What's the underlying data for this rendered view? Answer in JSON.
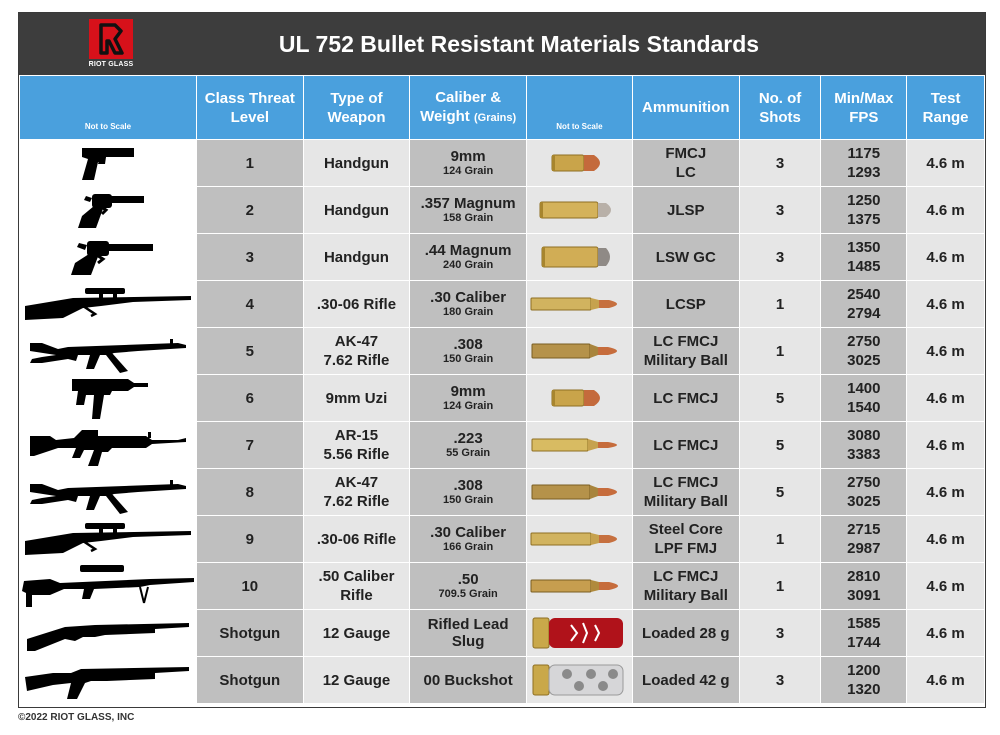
{
  "header": {
    "logo_text": "RIOT GLASS",
    "title": "UL 752 Bullet Resistant Materials Standards"
  },
  "columns": {
    "not_to_scale_1": "Not to Scale",
    "level": "Class Threat Level",
    "weapon": "Type of Weapon",
    "caliber_main": "Caliber &",
    "caliber_sub_a": "Weight",
    "caliber_sub_b": "(Grains)",
    "not_to_scale_2": "Not to Scale",
    "ammo": "Ammunition",
    "shots": "No. of Shots",
    "fps": "Min/Max FPS",
    "range": "Test Range"
  },
  "rows": [
    {
      "level": "1",
      "weapon": "Handgun",
      "caliber": "9mm",
      "grain": "124 Grain",
      "ammo": "FMCJ\nLC",
      "shots": "3",
      "fps_min": "1175",
      "fps_max": "1293",
      "range": "4.6 m",
      "gun_icon": "pistol-icon",
      "bullet_icon": "bullet-9mm-icon"
    },
    {
      "level": "2",
      "weapon": "Handgun",
      "caliber": ".357 Magnum",
      "grain": "158 Grain",
      "ammo": "JLSP",
      "shots": "3",
      "fps_min": "1250",
      "fps_max": "1375",
      "range": "4.6 m",
      "gun_icon": "revolver-icon",
      "bullet_icon": "bullet-357-icon"
    },
    {
      "level": "3",
      "weapon": "Handgun",
      "caliber": ".44 Magnum",
      "grain": "240 Grain",
      "ammo": "LSW GC",
      "shots": "3",
      "fps_min": "1350",
      "fps_max": "1485",
      "range": "4.6 m",
      "gun_icon": "revolver-long-icon",
      "bullet_icon": "bullet-44-icon"
    },
    {
      "level": "4",
      "weapon": ".30-06 Rifle",
      "caliber": ".30 Caliber",
      "grain": "180 Grain",
      "ammo": "LCSP",
      "shots": "1",
      "fps_min": "2540",
      "fps_max": "2794",
      "range": "4.6 m",
      "gun_icon": "scoped-rifle-icon",
      "bullet_icon": "bullet-rifle-icon"
    },
    {
      "level": "5",
      "weapon": "AK-47\n7.62 Rifle",
      "caliber": ".308",
      "grain": "150 Grain",
      "ammo": "LC FMCJ\nMilitary Ball",
      "shots": "1",
      "fps_min": "2750",
      "fps_max": "3025",
      "range": "4.6 m",
      "gun_icon": "ak47-icon",
      "bullet_icon": "bullet-308-icon"
    },
    {
      "level": "6",
      "weapon": "9mm Uzi",
      "caliber": "9mm",
      "grain": "124 Grain",
      "ammo": "LC FMCJ",
      "shots": "5",
      "fps_min": "1400",
      "fps_max": "1540",
      "range": "4.6 m",
      "gun_icon": "uzi-icon",
      "bullet_icon": "bullet-9mm-icon"
    },
    {
      "level": "7",
      "weapon": "AR-15\n5.56 Rifle",
      "caliber": ".223",
      "grain": "55 Grain",
      "ammo": "LC FMCJ",
      "shots": "5",
      "fps_min": "3080",
      "fps_max": "3383",
      "range": "4.6 m",
      "gun_icon": "ar15-icon",
      "bullet_icon": "bullet-223-icon"
    },
    {
      "level": "8",
      "weapon": "AK-47\n7.62 Rifle",
      "caliber": ".308",
      "grain": "150 Grain",
      "ammo": "LC FMCJ\nMilitary Ball",
      "shots": "5",
      "fps_min": "2750",
      "fps_max": "3025",
      "range": "4.6 m",
      "gun_icon": "ak47-icon",
      "bullet_icon": "bullet-308-icon"
    },
    {
      "level": "9",
      "weapon": ".30-06 Rifle",
      "caliber": ".30 Caliber",
      "grain": "166 Grain",
      "ammo": "Steel Core\nLPF FMJ",
      "shots": "1",
      "fps_min": "2715",
      "fps_max": "2987",
      "range": "4.6 m",
      "gun_icon": "scoped-rifle-icon",
      "bullet_icon": "bullet-rifle-icon"
    },
    {
      "level": "10",
      "weapon": ".50 Caliber\nRifle",
      "caliber": ".50",
      "grain": "709.5 Grain",
      "ammo": "LC FMCJ\nMilitary Ball",
      "shots": "1",
      "fps_min": "2810",
      "fps_max": "3091",
      "range": "4.6 m",
      "gun_icon": "sniper-rifle-icon",
      "bullet_icon": "bullet-50-icon"
    },
    {
      "level": "Shotgun",
      "weapon": "12 Gauge",
      "caliber": "Rifled Lead\nSlug",
      "grain": "",
      "ammo": "Loaded 28 g",
      "shots": "3",
      "fps_min": "1585",
      "fps_max": "1744",
      "range": "4.6 m",
      "gun_icon": "shotgun-icon",
      "bullet_icon": "shell-red-icon"
    },
    {
      "level": "Shotgun",
      "weapon": "12 Gauge",
      "caliber": "00 Buckshot",
      "grain": "",
      "ammo": "Loaded 42 g",
      "shots": "3",
      "fps_min": "1200",
      "fps_max": "1320",
      "range": "4.6 m",
      "gun_icon": "shotgun-pistol-grip-icon",
      "bullet_icon": "shell-clear-icon"
    }
  ],
  "footer": "©2022 RIOT GLASS, INC",
  "colors": {
    "title_bar": "#3d3d3d",
    "header_blue": "#4aa0dd",
    "brand_red": "#d7111a",
    "cell_dark": "#bfbfbf",
    "cell_light": "#e6e6e6",
    "silhouette": "#000000"
  }
}
